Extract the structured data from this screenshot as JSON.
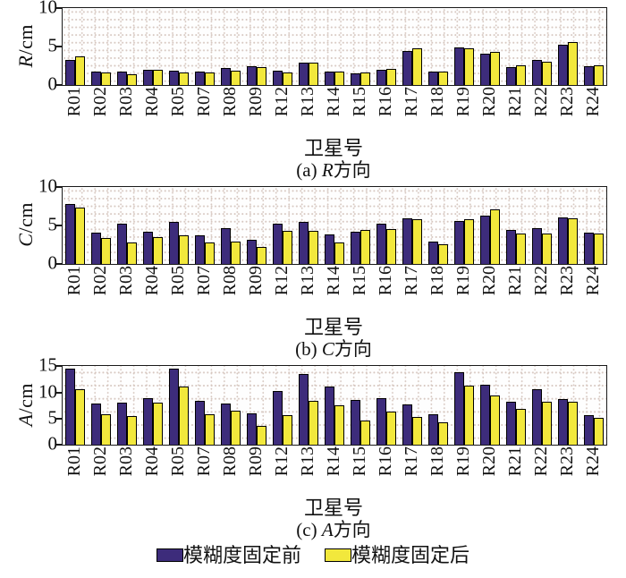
{
  "figure": {
    "legend": [
      {
        "label": "模糊度固定前",
        "color": "#3D2C7B"
      },
      {
        "label": "模糊度固定后",
        "color": "#F2E83C"
      }
    ],
    "grid_color": "#d7c8c1",
    "axis_color": "#1a1a1a"
  },
  "chart_data": [
    {
      "type": "bar",
      "caption": {
        "index": "(a)",
        "letter": "R",
        "suffix": "方向"
      },
      "ylabel": {
        "letter": "R",
        "unit": "/cm"
      },
      "xlabel": "卫星号",
      "ylim": [
        0,
        10
      ],
      "yticks": [
        0,
        5,
        10
      ],
      "grid": true,
      "legend_position": "bottom",
      "categories": [
        "R01",
        "R02",
        "R03",
        "R04",
        "R05",
        "R07",
        "R08",
        "R09",
        "R12",
        "R13",
        "R14",
        "R15",
        "R16",
        "R17",
        "R18",
        "R19",
        "R20",
        "R21",
        "R22",
        "R23",
        "R24"
      ],
      "series": [
        {
          "name": "模糊度固定前",
          "values": [
            3.2,
            1.8,
            1.7,
            2.0,
            1.9,
            1.8,
            2.2,
            2.5,
            1.9,
            2.9,
            1.7,
            1.5,
            2.0,
            4.4,
            1.7,
            4.9,
            4.1,
            2.3,
            3.3,
            5.2,
            2.4
          ]
        },
        {
          "name": "模糊度固定后",
          "values": [
            3.7,
            1.6,
            1.4,
            2.0,
            1.6,
            1.6,
            1.9,
            2.3,
            1.6,
            2.9,
            1.7,
            1.6,
            2.1,
            4.8,
            1.7,
            4.8,
            4.3,
            2.6,
            3.0,
            5.6,
            2.6
          ]
        }
      ]
    },
    {
      "type": "bar",
      "caption": {
        "index": "(b)",
        "letter": "C",
        "suffix": "方向"
      },
      "ylabel": {
        "letter": "C",
        "unit": "/cm"
      },
      "xlabel": "卫星号",
      "ylim": [
        0,
        10
      ],
      "yticks": [
        0,
        5,
        10
      ],
      "grid": true,
      "legend_position": "bottom",
      "categories": [
        "R01",
        "R02",
        "R03",
        "R04",
        "R05",
        "R07",
        "R08",
        "R09",
        "R12",
        "R13",
        "R14",
        "R15",
        "R16",
        "R17",
        "R18",
        "R19",
        "R20",
        "R21",
        "R22",
        "R23",
        "R24"
      ],
      "series": [
        {
          "name": "模糊度固定前",
          "values": [
            7.8,
            4.1,
            5.2,
            4.2,
            5.5,
            3.8,
            4.7,
            3.2,
            5.2,
            5.5,
            3.9,
            4.2,
            5.2,
            5.9,
            2.9,
            5.6,
            6.3,
            4.4,
            4.7,
            6.1,
            4.1
          ]
        },
        {
          "name": "模糊度固定后",
          "values": [
            7.3,
            3.4,
            2.8,
            3.5,
            3.8,
            2.8,
            2.9,
            2.2,
            4.3,
            4.3,
            2.8,
            4.4,
            4.6,
            5.8,
            2.6,
            5.8,
            7.1,
            4.0,
            4.0,
            5.9,
            4.0
          ]
        }
      ]
    },
    {
      "type": "bar",
      "caption": {
        "index": "(c)",
        "letter": "A",
        "suffix": "方向"
      },
      "ylabel": {
        "letter": "A",
        "unit": "/cm"
      },
      "xlabel": "卫星号",
      "ylim": [
        0,
        15
      ],
      "yticks": [
        0,
        5,
        10,
        15
      ],
      "grid": true,
      "legend_position": "bottom",
      "categories": [
        "R01",
        "R02",
        "R03",
        "R04",
        "R05",
        "R07",
        "R08",
        "R09",
        "R12",
        "R13",
        "R14",
        "R15",
        "R16",
        "R17",
        "R18",
        "R19",
        "R20",
        "R21",
        "R22",
        "R23",
        "R24"
      ],
      "series": [
        {
          "name": "模糊度固定前",
          "values": [
            14.5,
            7.9,
            8.0,
            9.0,
            14.5,
            8.4,
            7.9,
            6.0,
            10.3,
            13.6,
            11.2,
            8.6,
            9.0,
            7.7,
            5.9,
            13.9,
            11.5,
            8.2,
            10.7,
            8.8,
            5.7
          ]
        },
        {
          "name": "模糊度固定后",
          "values": [
            10.7,
            5.9,
            5.6,
            8.0,
            11.2,
            5.8,
            6.5,
            3.7,
            5.7,
            8.4,
            7.6,
            4.7,
            6.4,
            5.4,
            4.4,
            11.3,
            9.4,
            6.8,
            8.3,
            8.3,
            5.2
          ]
        }
      ]
    }
  ]
}
